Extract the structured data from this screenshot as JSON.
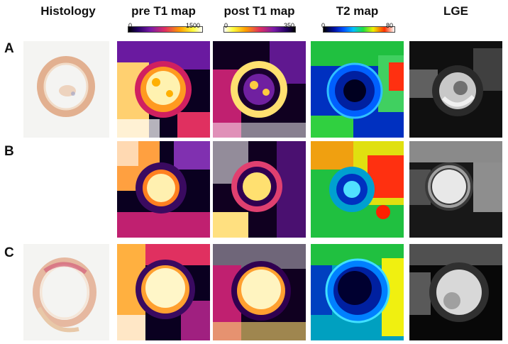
{
  "columns": {
    "histology": "Histology",
    "pre_t1": "pre T1 map",
    "post_t1": "post T1 map",
    "t2": "T2 map",
    "lge": "LGE"
  },
  "rows": [
    "A",
    "B",
    "C"
  ],
  "colorbars": {
    "pre_t1": {
      "min": "0",
      "max": "1500"
    },
    "post_t1": {
      "min": "0",
      "max": "350"
    },
    "t2": {
      "min": "0",
      "max": "80"
    }
  }
}
